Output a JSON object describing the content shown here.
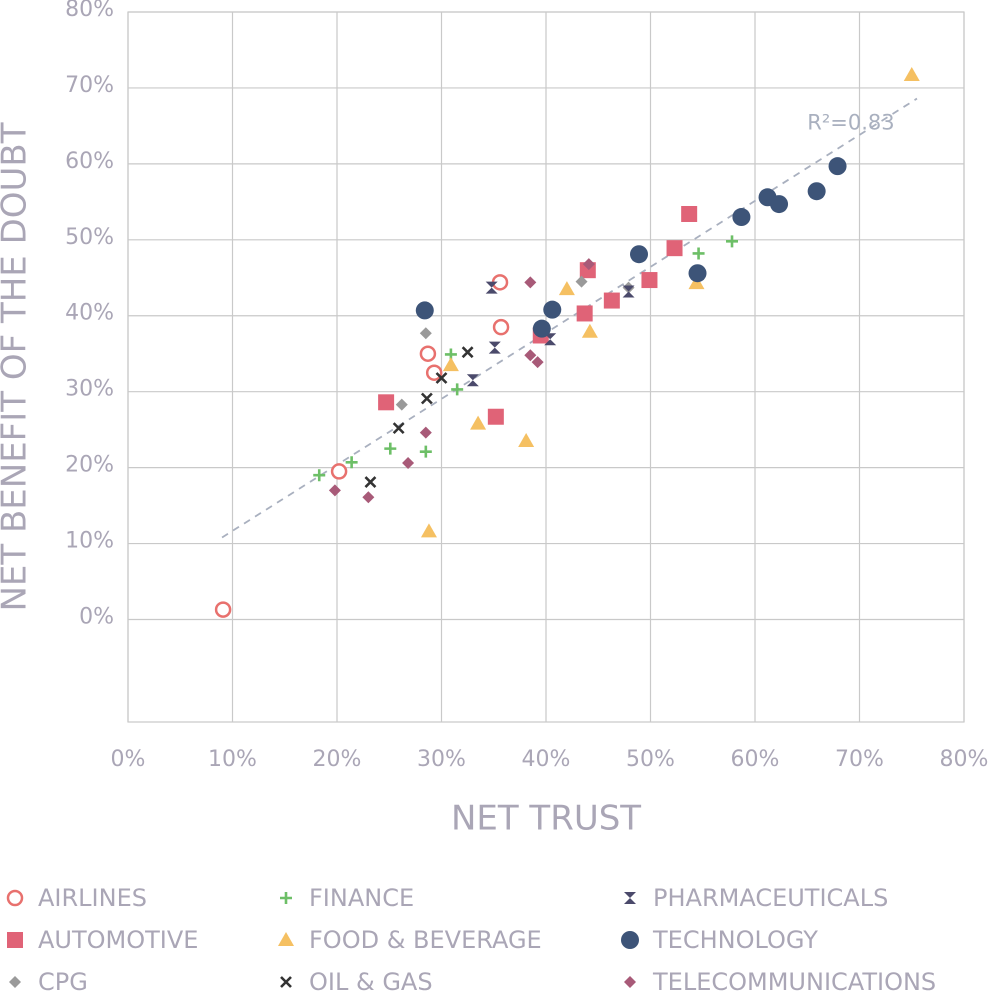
{
  "chart_data": {
    "type": "scatter",
    "x_label": "NET TRUST",
    "y_label": "NET BENEFIT OF THE DOUBT",
    "xlim": [
      0,
      80
    ],
    "ylim": [
      -13.5,
      80
    ],
    "xticks": [
      {
        "value": 0,
        "label": "0%"
      },
      {
        "value": 10,
        "label": "10%"
      },
      {
        "value": 20,
        "label": "20%"
      },
      {
        "value": 30,
        "label": "30%"
      },
      {
        "value": 40,
        "label": "40%"
      },
      {
        "value": 50,
        "label": "50%"
      },
      {
        "value": 60,
        "label": "60%"
      },
      {
        "value": 70,
        "label": "70%"
      },
      {
        "value": 80,
        "label": "80%"
      }
    ],
    "yticks": [
      {
        "value": 0,
        "label": "0%"
      },
      {
        "value": 10,
        "label": "10%"
      },
      {
        "value": 20,
        "label": "20%"
      },
      {
        "value": 30,
        "label": "30%"
      },
      {
        "value": 40,
        "label": "40%"
      },
      {
        "value": 50,
        "label": "50%"
      },
      {
        "value": 60,
        "label": "60%"
      },
      {
        "value": 70,
        "label": "70%"
      },
      {
        "value": 80,
        "label": "80%"
      }
    ],
    "grid": true,
    "trendline": {
      "label": "R²=0.83",
      "color": "#a9b0bf",
      "x": [
        9,
        75.5
      ],
      "y": [
        10.8,
        68.6
      ]
    },
    "series": [
      {
        "name": "AIRLINES",
        "marker": "circle-open",
        "color": "#e8716e",
        "x": [
          9.1,
          20.2,
          28.7,
          29.3,
          35.6,
          35.7
        ],
        "y": [
          1.3,
          19.5,
          35.0,
          32.5,
          44.4,
          38.5
        ]
      },
      {
        "name": "AUTOMOTIVE",
        "marker": "square",
        "color": "#e06377",
        "x": [
          24.7,
          35.2,
          39.5,
          43.7,
          44.0,
          46.3,
          49.9,
          52.3,
          53.7
        ],
        "y": [
          28.6,
          26.7,
          37.4,
          40.3,
          46.0,
          42.0,
          44.7,
          48.9,
          53.4
        ]
      },
      {
        "name": "CPG",
        "marker": "diamond",
        "color": "#9a9a9a",
        "x": [
          26.2,
          28.5,
          43.4,
          47.9
        ],
        "y": [
          28.3,
          37.7,
          44.5,
          43.7
        ]
      },
      {
        "name": "FINANCE",
        "marker": "plus",
        "color": "#6dbf67",
        "x": [
          18.3,
          21.4,
          25.1,
          28.5,
          30.9,
          31.5,
          54.6,
          57.8
        ],
        "y": [
          19.0,
          20.7,
          22.5,
          22.1,
          34.9,
          30.3,
          48.2,
          49.8
        ]
      },
      {
        "name": "FOOD & BEVERAGE",
        "marker": "triangle",
        "color": "#f5c062",
        "x": [
          28.8,
          30.9,
          33.5,
          38.1,
          42.0,
          44.2,
          54.4,
          75.0
        ],
        "y": [
          11.6,
          33.5,
          25.8,
          23.5,
          43.5,
          37.9,
          44.3,
          71.7
        ]
      },
      {
        "name": "OIL & GAS",
        "marker": "x",
        "color": "#333333",
        "x": [
          23.2,
          25.9,
          28.6,
          30.0,
          32.5
        ],
        "y": [
          18.1,
          25.2,
          29.1,
          31.8,
          35.2
        ]
      },
      {
        "name": "PHARMACEUTICALS",
        "marker": "hourglass",
        "color": "#4b4a6b",
        "x": [
          34.8,
          35.1,
          33.0,
          40.4,
          47.9
        ],
        "y": [
          43.7,
          35.8,
          31.5,
          36.9,
          43.2
        ]
      },
      {
        "name": "TECHNOLOGY",
        "marker": "circle",
        "color": "#3d5478",
        "x": [
          28.4,
          39.6,
          40.6,
          48.9,
          54.5,
          58.7,
          61.2,
          62.3,
          65.9,
          67.9
        ],
        "y": [
          40.7,
          38.3,
          40.8,
          48.1,
          45.6,
          53.0,
          55.6,
          54.7,
          56.4,
          59.7
        ]
      },
      {
        "name": "TELECOMMUNICATIONS",
        "marker": "diamond",
        "color": "#a85a78",
        "x": [
          19.8,
          23.0,
          26.8,
          28.5,
          38.5,
          39.2,
          38.5,
          44.1
        ],
        "y": [
          17.0,
          16.1,
          20.6,
          24.6,
          34.8,
          33.9,
          44.4,
          46.8
        ]
      }
    ]
  }
}
